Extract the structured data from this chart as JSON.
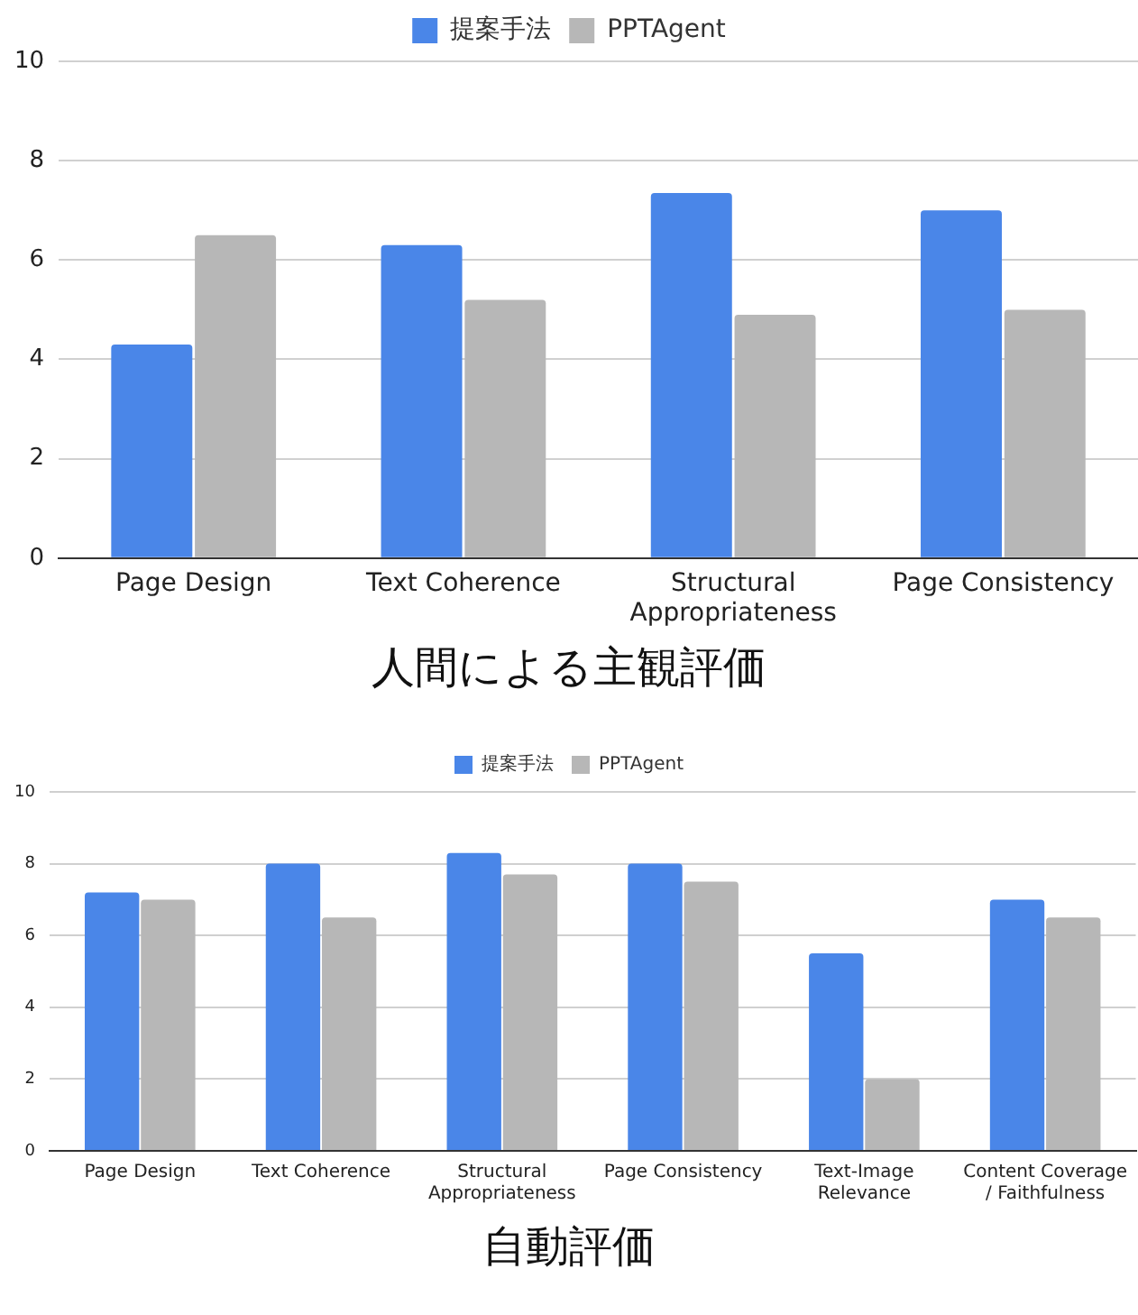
{
  "chart_data": [
    {
      "type": "bar",
      "title": "人間による主観評価",
      "categories": [
        "Page Design",
        "Text Coherence",
        "Structural Appropriateness",
        "Page Consistency"
      ],
      "series": [
        {
          "name": "提案手法",
          "color": "#4a86e8",
          "values": [
            4.3,
            6.3,
            7.35,
            7.0
          ]
        },
        {
          "name": "PPTAgent",
          "color": "#b7b7b7",
          "values": [
            6.5,
            5.2,
            4.9,
            5.0
          ]
        }
      ],
      "ylim": [
        0,
        10
      ],
      "yticks": [
        0,
        2,
        4,
        6,
        8,
        10
      ],
      "grid": "y",
      "legend": "top"
    },
    {
      "type": "bar",
      "title": "自動評価",
      "categories": [
        "Page Design",
        "Text Coherence",
        "Structural Appropriateness",
        "Page Consistency",
        "Text-Image Relevance",
        "Content Coverage / Faithfulness"
      ],
      "series": [
        {
          "name": "提案手法",
          "color": "#4a86e8",
          "values": [
            7.2,
            8.0,
            8.3,
            8.0,
            5.5,
            7.0
          ]
        },
        {
          "name": "PPTAgent",
          "color": "#b7b7b7",
          "values": [
            7.0,
            6.5,
            7.7,
            7.5,
            2.0,
            6.5
          ]
        }
      ],
      "ylim": [
        0,
        10
      ],
      "yticks": [
        0,
        2,
        4,
        6,
        8,
        10
      ],
      "grid": "y",
      "legend": "top"
    }
  ]
}
